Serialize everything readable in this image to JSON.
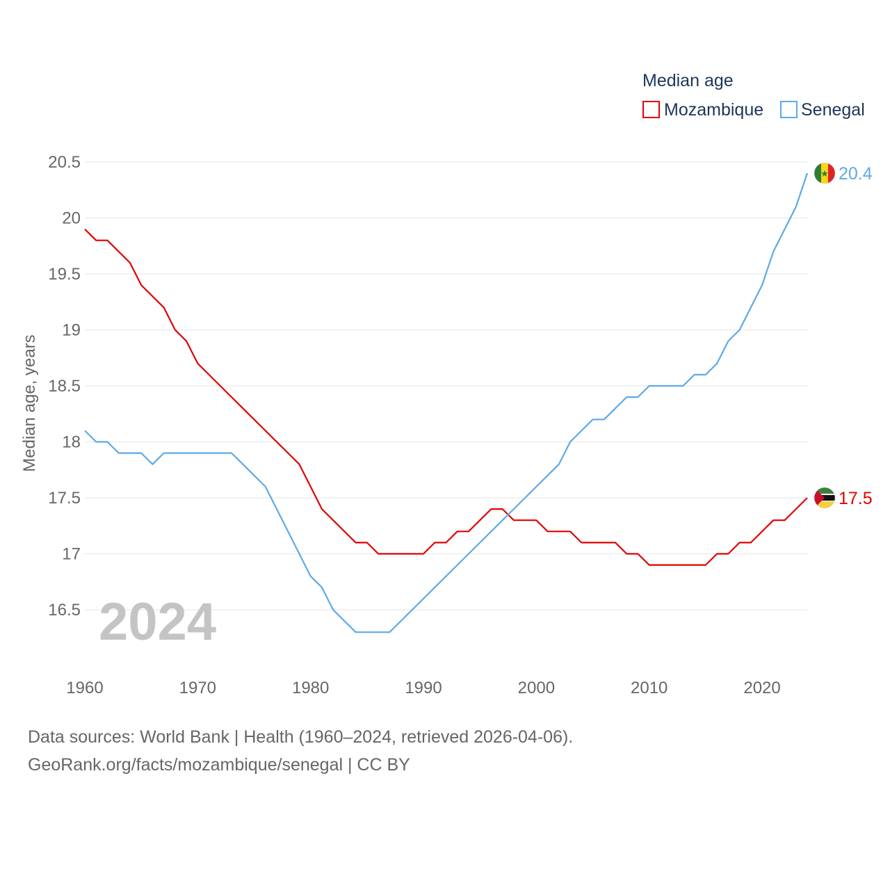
{
  "chart_data": {
    "type": "line",
    "legend_title": "Median age",
    "ylabel": "Median age, years",
    "year_label": "2024",
    "ylim": [
      16,
      20.5
    ],
    "xlim": [
      1960,
      2024
    ],
    "y_ticks": [
      "16.5",
      "17",
      "17.5",
      "18",
      "18.5",
      "19",
      "19.5",
      "20",
      "20.5"
    ],
    "x_ticks": [
      "1960",
      "1970",
      "1980",
      "1990",
      "2000",
      "2010",
      "2020"
    ],
    "series": [
      {
        "name": "Mozambique",
        "color": "#e00000",
        "end_label": "17.5",
        "flag_icon": "mozambique-flag-icon",
        "x": [
          1960,
          1961,
          1962,
          1963,
          1964,
          1965,
          1966,
          1967,
          1968,
          1969,
          1970,
          1971,
          1972,
          1973,
          1974,
          1975,
          1976,
          1977,
          1978,
          1979,
          1980,
          1981,
          1982,
          1983,
          1984,
          1985,
          1986,
          1987,
          1988,
          1989,
          1990,
          1991,
          1992,
          1993,
          1994,
          1995,
          1996,
          1997,
          1998,
          1999,
          2000,
          2001,
          2002,
          2003,
          2004,
          2005,
          2006,
          2007,
          2008,
          2009,
          2010,
          2011,
          2012,
          2013,
          2014,
          2015,
          2016,
          2017,
          2018,
          2019,
          2020,
          2021,
          2022,
          2023,
          2024
        ],
        "values": [
          19.9,
          19.8,
          19.8,
          19.7,
          19.6,
          19.4,
          19.3,
          19.2,
          19.0,
          18.9,
          18.7,
          18.6,
          18.5,
          18.4,
          18.3,
          18.2,
          18.1,
          18.0,
          17.9,
          17.8,
          17.6,
          17.4,
          17.3,
          17.2,
          17.1,
          17.1,
          17.0,
          17.0,
          17.0,
          17.0,
          17.0,
          17.1,
          17.1,
          17.2,
          17.2,
          17.3,
          17.4,
          17.4,
          17.3,
          17.3,
          17.3,
          17.2,
          17.2,
          17.2,
          17.1,
          17.1,
          17.1,
          17.1,
          17.0,
          17.0,
          16.9,
          16.9,
          16.9,
          16.9,
          16.9,
          16.9,
          17.0,
          17.0,
          17.1,
          17.1,
          17.2,
          17.3,
          17.3,
          17.4,
          17.5
        ]
      },
      {
        "name": "Senegal",
        "color": "#5da9e9",
        "end_label": "20.4",
        "flag_icon": "senegal-flag-icon",
        "x": [
          1960,
          1961,
          1962,
          1963,
          1964,
          1965,
          1966,
          1967,
          1968,
          1969,
          1970,
          1971,
          1972,
          1973,
          1974,
          1975,
          1976,
          1977,
          1978,
          1979,
          1980,
          1981,
          1982,
          1983,
          1984,
          1985,
          1986,
          1987,
          1988,
          1989,
          1990,
          1991,
          1992,
          1993,
          1994,
          1995,
          1996,
          1997,
          1998,
          1999,
          2000,
          2001,
          2002,
          2003,
          2004,
          2005,
          2006,
          2007,
          2008,
          2009,
          2010,
          2011,
          2012,
          2013,
          2014,
          2015,
          2016,
          2017,
          2018,
          2019,
          2020,
          2021,
          2022,
          2023,
          2024
        ],
        "values": [
          18.1,
          18.0,
          18.0,
          17.9,
          17.9,
          17.9,
          17.8,
          17.9,
          17.9,
          17.9,
          17.9,
          17.9,
          17.9,
          17.9,
          17.8,
          17.7,
          17.6,
          17.4,
          17.2,
          17.0,
          16.8,
          16.7,
          16.5,
          16.4,
          16.3,
          16.3,
          16.3,
          16.3,
          16.4,
          16.5,
          16.6,
          16.7,
          16.8,
          16.9,
          17.0,
          17.1,
          17.2,
          17.3,
          17.4,
          17.5,
          17.6,
          17.7,
          17.8,
          18.0,
          18.1,
          18.2,
          18.2,
          18.3,
          18.4,
          18.4,
          18.5,
          18.5,
          18.5,
          18.5,
          18.6,
          18.6,
          18.7,
          18.9,
          19.0,
          19.2,
          19.4,
          19.7,
          19.9,
          20.1,
          20.4
        ]
      }
    ]
  },
  "source": {
    "line1": "Data sources: World Bank | Health (1960–2024, retrieved 2026-04-06).",
    "line2": "GeoRank.org/facts/mozambique/senegal | CC BY"
  }
}
